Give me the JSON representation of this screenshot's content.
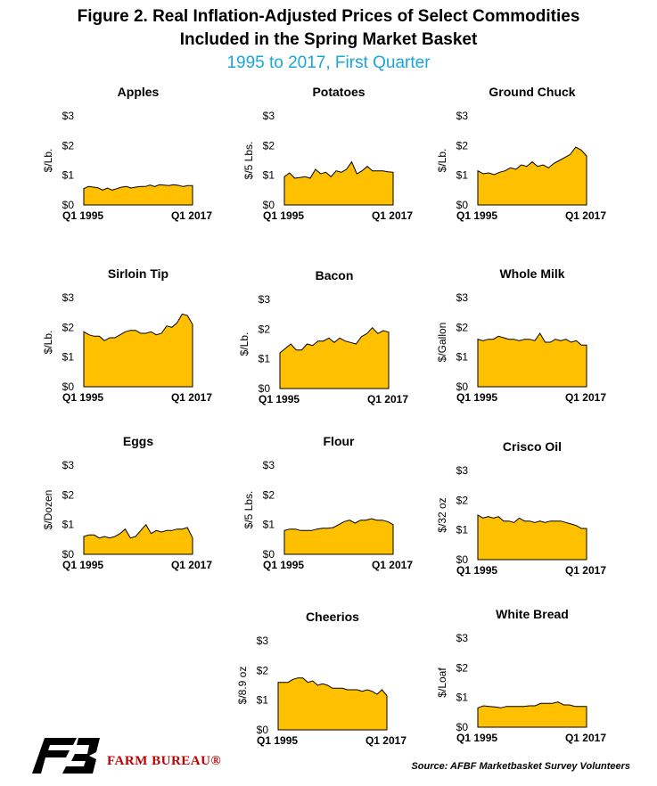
{
  "header": {
    "title_line1": "Figure 2. Real Inflation-Adjusted Prices of Select Commodities",
    "title_line2": "Included in the Spring Market Basket",
    "subtitle": "1995 to 2017, First Quarter"
  },
  "colors": {
    "fill": "#FFC000",
    "subtitle": "#1BA6D9",
    "stroke": "#000000",
    "brand": "#C00000"
  },
  "footer": {
    "source": "Source: AFBF Marketbasket Survey Volunteers",
    "brand": "FARM BUREAU®"
  },
  "chart_data": [
    {
      "type": "area",
      "title": "Apples",
      "ylabel": "$/Lb.",
      "ylim": [
        0,
        3
      ],
      "yticks": [
        "$0",
        "$1",
        "$2",
        "$3"
      ],
      "xtick_labels": [
        "Q1 1995",
        "Q1 2017"
      ],
      "values": [
        0.55,
        0.62,
        0.6,
        0.58,
        0.5,
        0.57,
        0.5,
        0.55,
        0.6,
        0.62,
        0.57,
        0.6,
        0.62,
        0.62,
        0.67,
        0.62,
        0.68,
        0.67,
        0.65,
        0.68,
        0.66,
        0.62,
        0.65,
        0.65
      ]
    },
    {
      "type": "area",
      "title": "Potatoes",
      "ylabel": "$/5 Lbs.",
      "ylim": [
        0,
        3
      ],
      "yticks": [
        "$0",
        "$1",
        "$2",
        "$3"
      ],
      "xtick_labels": [
        "Q1 1995",
        "Q1 2017"
      ],
      "values": [
        0.95,
        1.08,
        0.9,
        0.92,
        0.95,
        0.9,
        1.2,
        1.05,
        1.1,
        0.95,
        1.15,
        1.1,
        1.2,
        1.45,
        1.05,
        1.15,
        1.3,
        1.15,
        1.15,
        1.15,
        1.12,
        1.1
      ]
    },
    {
      "type": "area",
      "title": "Ground Chuck",
      "ylabel": "$/Lb.",
      "ylim": [
        0,
        3
      ],
      "yticks": [
        "$0",
        "$1",
        "$2",
        "$3"
      ],
      "xtick_labels": [
        "Q1 1995",
        "Q1 2017"
      ],
      "values": [
        1.15,
        1.05,
        1.08,
        1.02,
        1.1,
        1.15,
        1.25,
        1.2,
        1.35,
        1.3,
        1.45,
        1.3,
        1.35,
        1.25,
        1.4,
        1.5,
        1.6,
        1.7,
        1.95,
        1.85,
        1.65
      ]
    },
    {
      "type": "area",
      "title": "Sirloin Tip",
      "ylabel": "$/Lb.",
      "ylim": [
        0,
        3
      ],
      "yticks": [
        "$0",
        "$1",
        "$2",
        "$3"
      ],
      "xtick_labels": [
        "Q1 1995",
        "Q1 2017"
      ],
      "values": [
        1.85,
        1.75,
        1.7,
        1.7,
        1.55,
        1.65,
        1.65,
        1.75,
        1.85,
        1.9,
        1.9,
        1.8,
        1.8,
        1.85,
        1.75,
        1.8,
        2.05,
        2.0,
        2.15,
        2.45,
        2.4,
        2.1
      ]
    },
    {
      "type": "area",
      "title": "Bacon",
      "ylabel": "$/Lb.",
      "ylim": [
        0,
        3
      ],
      "yticks": [
        "$0",
        "$1",
        "$2",
        "$3"
      ],
      "xtick_labels": [
        "Q1 1995",
        "Q1 2017"
      ],
      "values": [
        1.2,
        1.35,
        1.5,
        1.3,
        1.3,
        1.5,
        1.45,
        1.6,
        1.6,
        1.7,
        1.55,
        1.7,
        1.6,
        1.55,
        1.5,
        1.75,
        1.85,
        2.05,
        1.85,
        1.95,
        1.9
      ]
    },
    {
      "type": "area",
      "title": "Whole Milk",
      "ylabel": "$/Gallon",
      "ylim": [
        0,
        3
      ],
      "yticks": [
        "$0",
        "$1",
        "$2",
        "$3"
      ],
      "xtick_labels": [
        "Q1 1995",
        "Q1 2017"
      ],
      "values": [
        1.6,
        1.55,
        1.6,
        1.6,
        1.7,
        1.65,
        1.6,
        1.6,
        1.55,
        1.6,
        1.6,
        1.55,
        1.8,
        1.5,
        1.5,
        1.6,
        1.55,
        1.6,
        1.5,
        1.55,
        1.4,
        1.4
      ]
    },
    {
      "type": "area",
      "title": "Eggs",
      "ylabel": "$/Dozen",
      "ylim": [
        0,
        3
      ],
      "yticks": [
        "$0",
        "$1",
        "$2",
        "$3"
      ],
      "xtick_labels": [
        "Q1 1995",
        "Q1 2017"
      ],
      "values": [
        0.6,
        0.65,
        0.65,
        0.55,
        0.6,
        0.55,
        0.6,
        0.7,
        0.85,
        0.55,
        0.6,
        0.8,
        1.0,
        0.7,
        0.8,
        0.75,
        0.8,
        0.8,
        0.85,
        0.85,
        0.9,
        0.55
      ]
    },
    {
      "type": "area",
      "title": "Flour",
      "ylabel": "$/5 Lbs.",
      "ylim": [
        0,
        3
      ],
      "yticks": [
        "$0",
        "$1",
        "$2",
        "$3"
      ],
      "xtick_labels": [
        "Q1 1995",
        "Q1 2017"
      ],
      "values": [
        0.8,
        0.85,
        0.85,
        0.8,
        0.8,
        0.8,
        0.85,
        0.88,
        0.88,
        0.9,
        1.0,
        1.1,
        1.15,
        1.05,
        1.15,
        1.15,
        1.2,
        1.15,
        1.15,
        1.1,
        1.0
      ]
    },
    {
      "type": "area",
      "title": "Crisco Oil",
      "ylabel": "$/32 oz",
      "ylim": [
        0,
        3
      ],
      "yticks": [
        "$0",
        "$1",
        "$2",
        "$3"
      ],
      "xtick_labels": [
        "Q1 1995",
        "Q1 2017"
      ],
      "values": [
        1.5,
        1.4,
        1.45,
        1.4,
        1.45,
        1.3,
        1.3,
        1.25,
        1.4,
        1.3,
        1.3,
        1.25,
        1.3,
        1.25,
        1.3,
        1.3,
        1.3,
        1.25,
        1.2,
        1.15,
        1.05,
        1.05
      ]
    },
    {
      "type": "area",
      "title": "Cheerios",
      "ylabel": "$/8.9 oz",
      "ylim": [
        0,
        3
      ],
      "yticks": [
        "$0",
        "$1",
        "$2",
        "$3"
      ],
      "xtick_labels": [
        "Q1 1995",
        "Q1 2017"
      ],
      "values": [
        1.6,
        1.6,
        1.6,
        1.7,
        1.75,
        1.75,
        1.6,
        1.65,
        1.5,
        1.55,
        1.5,
        1.4,
        1.4,
        1.4,
        1.35,
        1.35,
        1.35,
        1.3,
        1.35,
        1.3,
        1.2,
        1.35,
        1.15
      ]
    },
    {
      "type": "area",
      "title": "White Bread",
      "ylabel": "$/Loaf",
      "ylim": [
        0,
        3
      ],
      "yticks": [
        "$0",
        "$1",
        "$2",
        "$3"
      ],
      "xtick_labels": [
        "Q1 1995",
        "Q1 2017"
      ],
      "values": [
        0.65,
        0.72,
        0.7,
        0.68,
        0.65,
        0.7,
        0.7,
        0.7,
        0.7,
        0.72,
        0.72,
        0.8,
        0.8,
        0.8,
        0.85,
        0.75,
        0.75,
        0.7,
        0.7,
        0.7
      ]
    }
  ]
}
